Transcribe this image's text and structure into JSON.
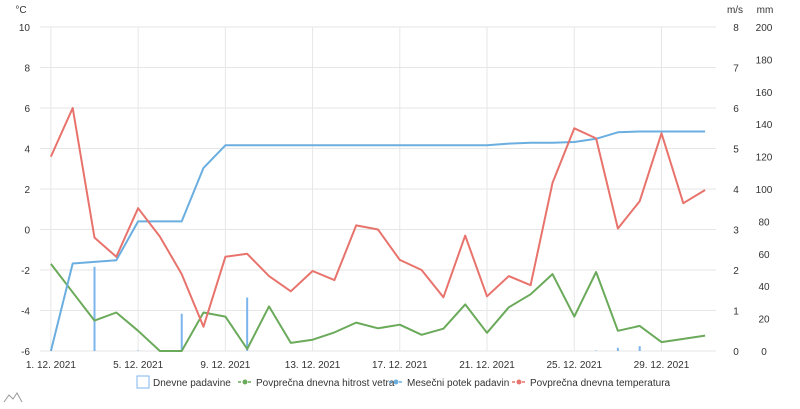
{
  "chart_data": {
    "type": "line",
    "x": [
      "1. 12. 2021",
      "2. 12. 2021",
      "3. 12. 2021",
      "4. 12. 2021",
      "5. 12. 2021",
      "6. 12. 2021",
      "7. 12. 2021",
      "8. 12. 2021",
      "9. 12. 2021",
      "10. 12. 2021",
      "11. 12. 2021",
      "12. 12. 2021",
      "13. 12. 2021",
      "14. 12. 2021",
      "15. 12. 2021",
      "16. 12. 2021",
      "17. 12. 2021",
      "18. 12. 2021",
      "19. 12. 2021",
      "20. 12. 2021",
      "21. 12. 2021",
      "22. 12. 2021",
      "23. 12. 2021",
      "24. 12. 2021",
      "25. 12. 2021",
      "26. 12. 2021",
      "27. 12. 2021",
      "28. 12. 2021",
      "29. 12. 2021",
      "30. 12. 2021",
      "31. 12. 2021"
    ],
    "x_tick_labels": [
      "1. 12. 2021",
      "5. 12. 2021",
      "9. 12. 2021",
      "13. 12. 2021",
      "17. 12. 2021",
      "21. 12. 2021",
      "25. 12. 2021",
      "29. 12. 2021"
    ],
    "axes": {
      "temperature": {
        "unit": "°C",
        "ylim": [
          -6,
          10
        ],
        "ticks": [
          -6,
          -4,
          -2,
          0,
          2,
          4,
          6,
          8,
          10
        ],
        "position": "left"
      },
      "wind": {
        "unit": "m/s",
        "ylim": [
          0,
          8
        ],
        "ticks": [
          0,
          1,
          2,
          3,
          4,
          5,
          6,
          7,
          8
        ],
        "position": "right-inner"
      },
      "precipitation": {
        "unit": "mm",
        "ylim": [
          0,
          200
        ],
        "ticks": [
          0,
          20,
          40,
          60,
          80,
          100,
          120,
          140,
          160,
          180,
          200
        ],
        "position": "right-outer"
      }
    },
    "grid": true,
    "legend_position": "bottom",
    "series": [
      {
        "name": "Dnevne padavine",
        "kind": "bar",
        "axis": "precipitation",
        "color": "#7cb5ec",
        "values": [
          0,
          0,
          52,
          0,
          0.3,
          0,
          23,
          0,
          0,
          33,
          0,
          0,
          0,
          0,
          0,
          0,
          0,
          0,
          0,
          0,
          0,
          0,
          0,
          0,
          0,
          0.3,
          2,
          3,
          0,
          0,
          0
        ]
      },
      {
        "name": "Povprečna dnevna hitrost vetra",
        "kind": "line",
        "axis": "wind",
        "color": "#6aaa5a",
        "values": [
          2.15,
          1.45,
          0.75,
          0.95,
          0.5,
          0,
          0,
          0.95,
          0.85,
          0.05,
          1.1,
          0.2,
          0.28,
          0.46,
          0.7,
          0.56,
          0.65,
          0.4,
          0.55,
          1.15,
          0.45,
          1.08,
          1.4,
          1.9,
          0.85,
          1.95,
          0.5,
          0.62,
          0.22,
          0.3,
          0.38
        ]
      },
      {
        "name": "Mesečni potek padavin",
        "kind": "line",
        "axis": "precipitation",
        "color": "#6baee0",
        "values": [
          0,
          54,
          55,
          56,
          80,
          80,
          80,
          113,
          127,
          127,
          127,
          127,
          127,
          127,
          127,
          127,
          127,
          127,
          127,
          127,
          127,
          128,
          128.5,
          128.5,
          129,
          131,
          135,
          135.5,
          135.5,
          135.5,
          135.5
        ]
      },
      {
        "name": "Povprečna dnevna temperatura",
        "kind": "line",
        "axis": "temperature",
        "color": "#e8736c",
        "values": [
          3.6,
          6.0,
          -0.4,
          -1.35,
          1.05,
          -0.35,
          -2.2,
          -4.8,
          -1.35,
          -1.2,
          -2.3,
          -3.05,
          -2.05,
          -2.5,
          0.2,
          0,
          -1.5,
          -2.0,
          -3.35,
          -0.3,
          -3.3,
          -2.3,
          -2.75,
          2.3,
          5.0,
          4.5,
          0.05,
          1.4,
          4.75,
          1.3,
          1.95
        ]
      }
    ]
  }
}
